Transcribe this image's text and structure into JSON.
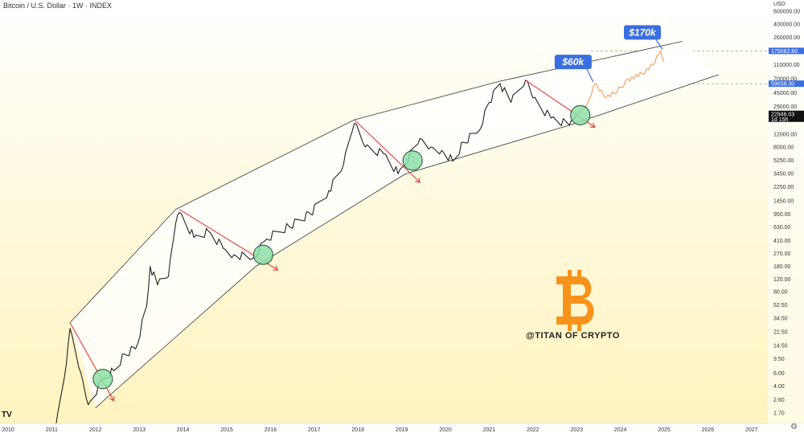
{
  "header": {
    "title": "Bitcoin / U.S. Dollar · 1W · INDEX"
  },
  "watermark": "@TITAN OF CRYPTO",
  "logo": {
    "name": "tradingview-logo",
    "text": "TV"
  },
  "icons": {
    "bitcoin": "bitcoin-logo-icon",
    "settings": "gear-icon"
  },
  "colors": {
    "bitcoin": "#f7931a",
    "down_line": "#e03c3c",
    "channel": "#333333",
    "projection": "#f4a36a",
    "callout": "#3a6fe0",
    "circle_fill": "#8fe0a8",
    "circle_stroke": "#1b4d2e"
  },
  "callouts": [
    {
      "label": "$60k",
      "value": 60000,
      "date": "2023-06"
    },
    {
      "label": "$170k",
      "value": 170000,
      "date": "2025-01"
    }
  ],
  "price_tags": [
    {
      "value_label": "170062.80",
      "color": "#3a6fe0"
    },
    {
      "value_label": "59938.30",
      "color": "#3a6fe0"
    },
    {
      "value_label": "22946.03",
      "sub_label": "1d 15h",
      "color": "#111111"
    }
  ],
  "chart_data": {
    "type": "line",
    "title": "Bitcoin / U.S. Dollar · 1W · INDEX",
    "xlabel": "",
    "ylabel": "USD",
    "y_scale": "log",
    "ylim": [
      1.2,
      900000
    ],
    "xlim": [
      "2010-01",
      "2027-06"
    ],
    "x_ticks": [
      "2010",
      "2011",
      "2012",
      "2013",
      "2014",
      "2015",
      "2016",
      "2017",
      "2018",
      "2019",
      "2020",
      "2021",
      "2022",
      "2023",
      "2024",
      "2025",
      "2026",
      "2027"
    ],
    "y_ticks": [
      "USD",
      "600000.00",
      "400000.00",
      "260000.00",
      "170062.80",
      "110000.00",
      "70000.00",
      "59938.30",
      "45000.00",
      "29000.00",
      "22946.03",
      "12000.00",
      "8000.00",
      "5250.00",
      "3450.00",
      "2250.00",
      "1450.00",
      "950.00",
      "630.00",
      "410.00",
      "270.00",
      "180.00",
      "120.00",
      "80.00",
      "52.50",
      "34.50",
      "22.50",
      "14.50",
      "9.50",
      "6.00",
      "4.00",
      "2.60",
      "1.70"
    ],
    "series": [
      {
        "kind": "price",
        "x": [
          "2011-02",
          "2011-05",
          "2011-06",
          "2011-09",
          "2011-11",
          "2012-03",
          "2012-06",
          "2012-09",
          "2012-12",
          "2013-03",
          "2013-04",
          "2013-06",
          "2013-09",
          "2013-11",
          "2013-12",
          "2014-04",
          "2014-08",
          "2014-12",
          "2015-03",
          "2015-08",
          "2015-12",
          "2016-06",
          "2016-12",
          "2017-05",
          "2017-09",
          "2017-12",
          "2018-03",
          "2018-08",
          "2018-12",
          "2019-06",
          "2019-09",
          "2019-12",
          "2020-03",
          "2020-06",
          "2020-10",
          "2021-01",
          "2021-04",
          "2021-07",
          "2021-11",
          "2022-01",
          "2022-06",
          "2022-11",
          "2023-01"
        ],
        "values": [
          1.0,
          8,
          25,
          6,
          2.2,
          5,
          6.5,
          11,
          13,
          50,
          180,
          100,
          130,
          700,
          1000,
          450,
          550,
          320,
          260,
          230,
          430,
          650,
          950,
          2000,
          4500,
          17000,
          8000,
          6500,
          3400,
          10500,
          8000,
          7200,
          5100,
          9300,
          13000,
          33000,
          60000,
          33000,
          67000,
          38000,
          20000,
          16000,
          22946
        ]
      },
      {
        "kind": "projection",
        "x": [
          "2023-01",
          "2023-04",
          "2023-06",
          "2023-09",
          "2023-12",
          "2024-03",
          "2024-07",
          "2024-10",
          "2024-12",
          "2025-01"
        ],
        "values": [
          22946,
          32000,
          60000,
          38000,
          45000,
          70000,
          82000,
          110000,
          170062,
          120000
        ]
      },
      {
        "kind": "channel-upper",
        "x": [
          "2011-06",
          "2013-11",
          "2017-12",
          "2021-04",
          "2025-06"
        ],
        "values": [
          30,
          1100,
          19000,
          65000,
          230000
        ]
      },
      {
        "kind": "channel-lower",
        "x": [
          "2012-01",
          "2015-09",
          "2019-02",
          "2022-11",
          "2026-04"
        ],
        "values": [
          2.0,
          180,
          3400,
          16000,
          80000
        ]
      },
      {
        "kind": "downtrend",
        "segments": [
          {
            "x": [
              "2011-06",
              "2012-06"
            ],
            "values": [
              30,
              2.5
            ]
          },
          {
            "x": [
              "2013-12",
              "2016-03"
            ],
            "values": [
              1100,
              160
            ]
          },
          {
            "x": [
              "2017-12",
              "2019-06"
            ],
            "values": [
              19000,
              2600
            ]
          },
          {
            "x": [
              "2021-11",
              "2023-06"
            ],
            "values": [
              67000,
              15000
            ]
          }
        ]
      }
    ],
    "annotations": [
      {
        "kind": "breakout-circle",
        "date": "2012-03",
        "value": 5.0
      },
      {
        "kind": "breakout-circle",
        "date": "2015-11",
        "value": 260
      },
      {
        "kind": "breakout-circle",
        "date": "2019-04",
        "value": 5200
      },
      {
        "kind": "breakout-circle",
        "date": "2023-02",
        "value": 22000
      },
      {
        "kind": "future-range-triangle",
        "x": [
          "2025-01",
          "2026-03",
          "2025-01"
        ],
        "values": [
          170062,
          85000,
          59938
        ]
      },
      {
        "kind": "dashed-level",
        "value": 170062.8
      },
      {
        "kind": "dashed-level",
        "value": 59938.3
      }
    ]
  }
}
